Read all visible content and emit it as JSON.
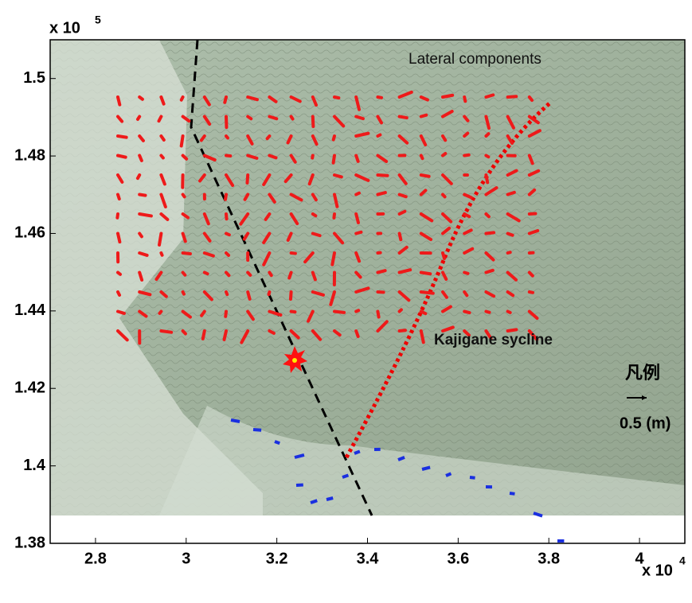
{
  "chart_data": {
    "type": "quiver-map",
    "annotations": [
      "Lateral components",
      "Kajigane sycline"
    ],
    "legend": {
      "title": "凡例",
      "label": "0.5 (m)"
    },
    "x_exponent": {
      "base": "x 10",
      "power": "4"
    },
    "y_exponent": {
      "base": "x 10",
      "power": "5"
    },
    "xlim": [
      2.7,
      4.1
    ],
    "xticks": [
      2.8,
      3,
      3.2,
      3.4,
      3.6,
      3.8,
      4
    ],
    "ylim": [
      1.38,
      1.51
    ],
    "yticks": [
      1.38,
      1.4,
      1.42,
      1.44,
      1.46,
      1.48,
      1.5
    ]
  }
}
